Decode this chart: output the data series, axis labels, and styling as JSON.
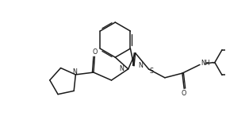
{
  "background": "#ffffff",
  "line_color": "#1a1a1a",
  "line_width": 1.1,
  "figsize": [
    2.85,
    1.51
  ],
  "dpi": 100,
  "xlim": [
    0,
    10
  ],
  "ylim": [
    0,
    5.3
  ]
}
